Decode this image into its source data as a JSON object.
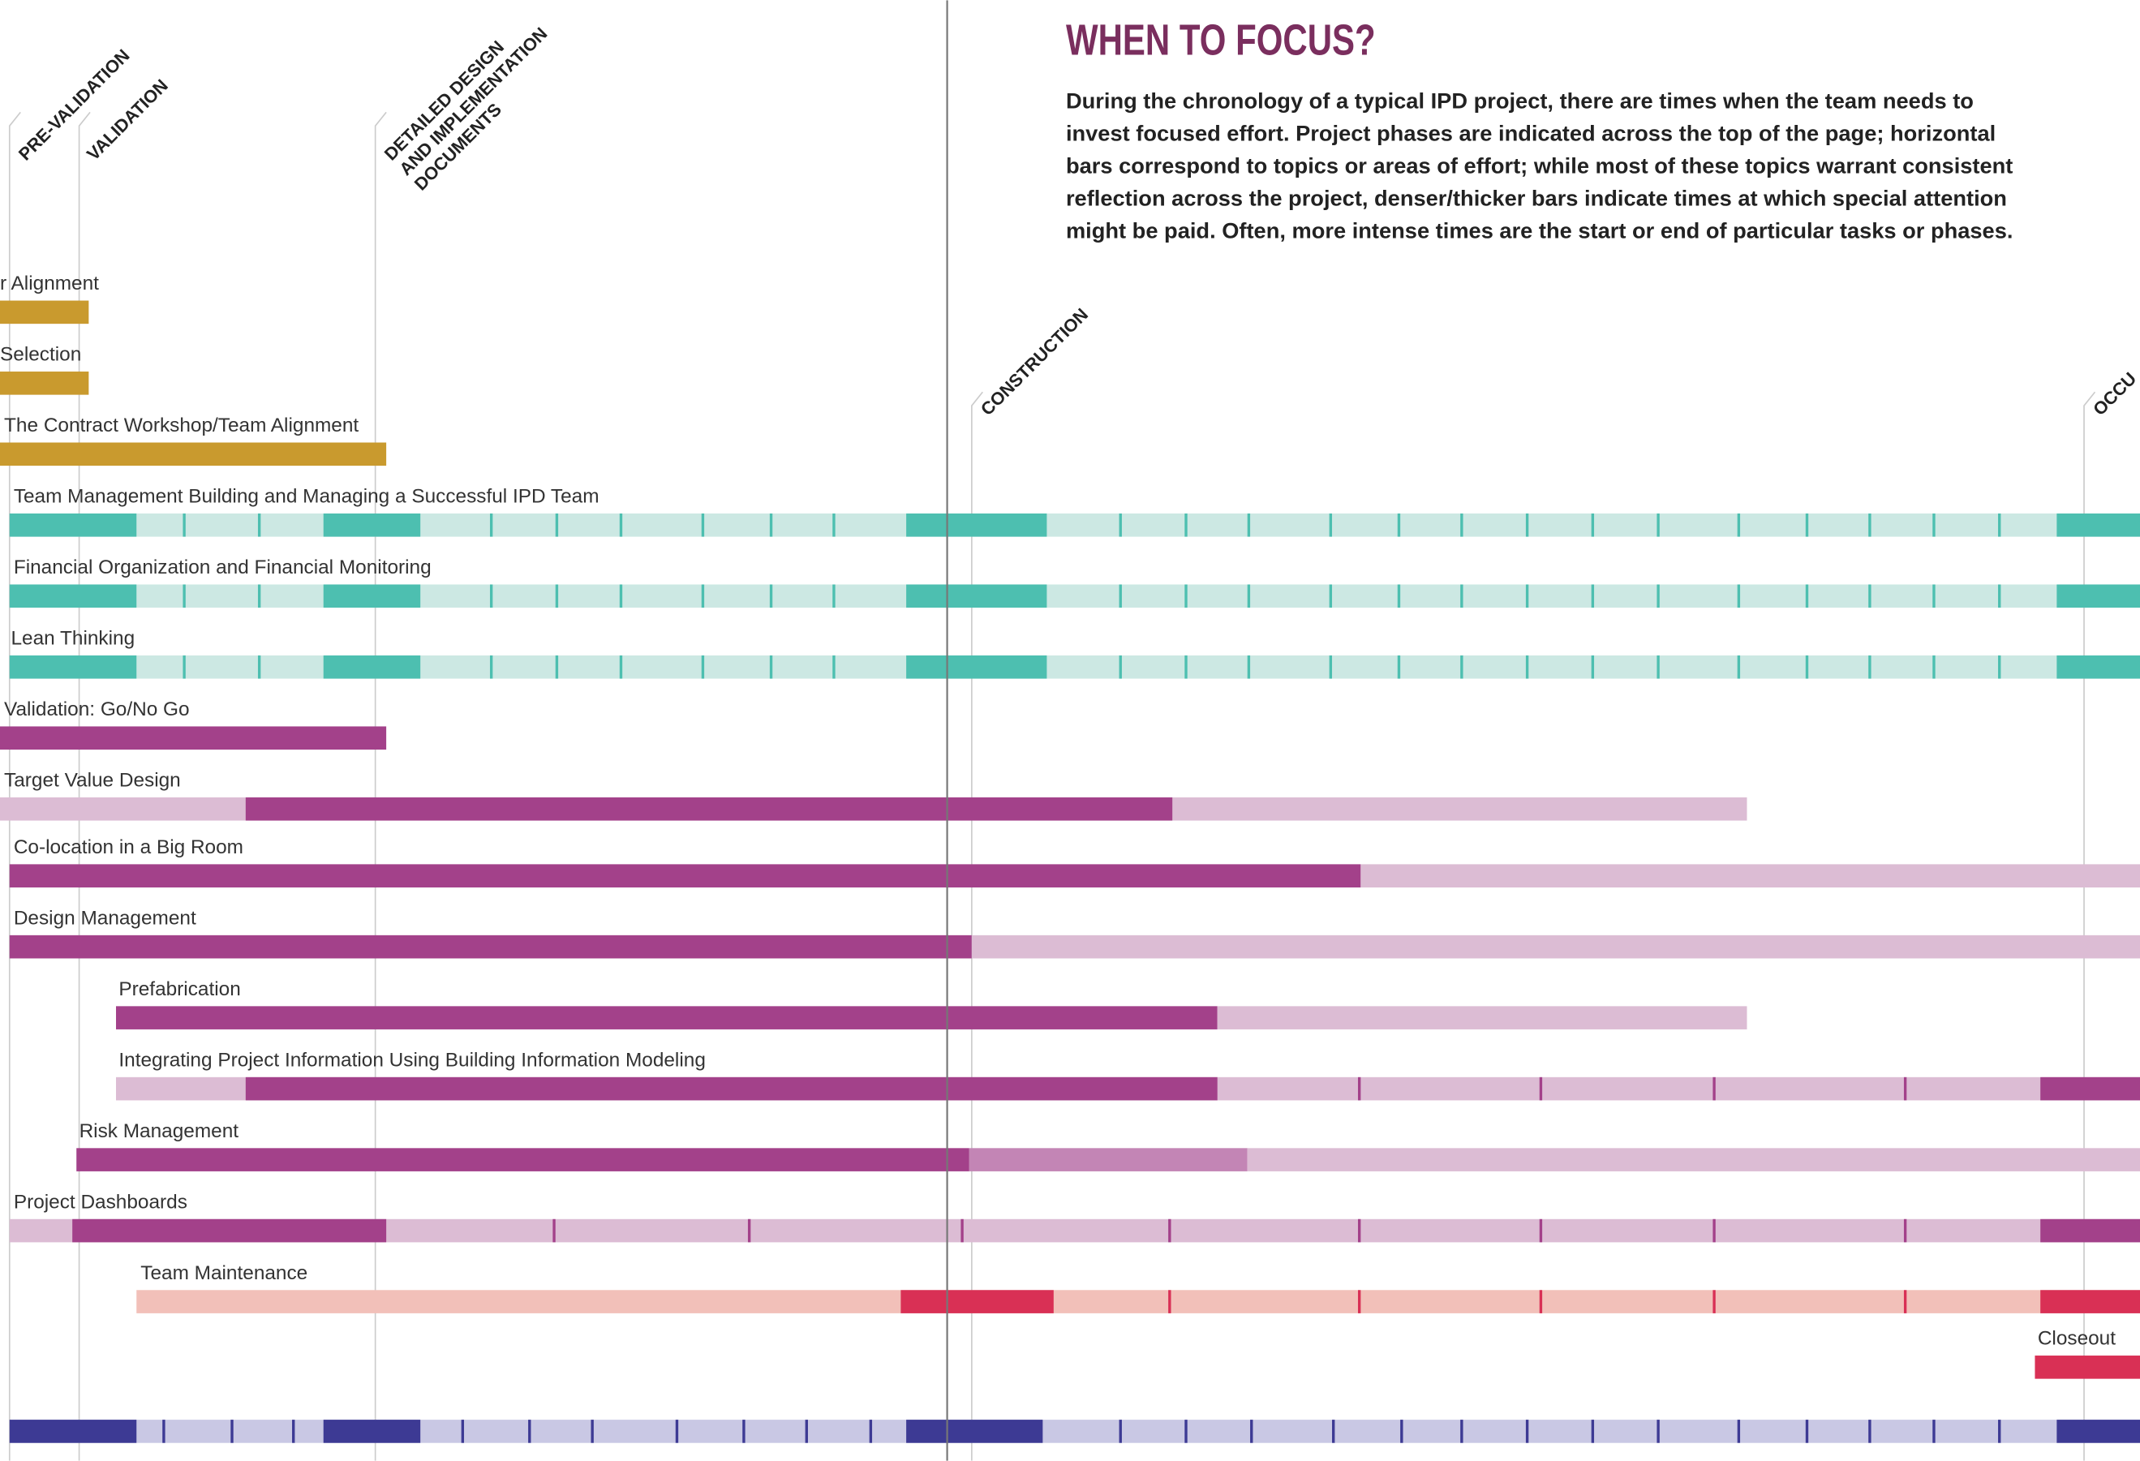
{
  "title": "WHEN TO FOCUS?",
  "description": [
    "During the chronology of a typical IPD project, there are times when the team needs to",
    "invest focused effort. Project phases are indicated across the top of the page; horizontal",
    "bars correspond to topics or areas of effort; while most of these topics warrant consistent",
    "reflection across the project,  denser/thicker bars indicate times at which special attention",
    "might be paid. Often, more intense times are the start or end of particular tasks or phases."
  ],
  "phases": [
    [
      "PRE-VALIDATION"
    ],
    [
      "VALIDATION"
    ],
    [
      "DETAILED DESIGN",
      "AND IMPLEMENTATION",
      "DOCUMENTS"
    ],
    [
      "CONSTRUCTION"
    ],
    [
      "OCCU"
    ]
  ],
  "rows": [
    "r Alignment",
    "Selection",
    "The Contract Workshop/Team Alignment",
    "Team Management Building and Managing a Successful IPD Team",
    "Financial Organization and Financial Monitoring",
    "Lean Thinking",
    "Validation: Go/No Go",
    "Target Value Design",
    "Co-location in a Big Room",
    "Design Management",
    "Prefabrication",
    "Integrating Project Information Using Building Information Modeling",
    "Risk Management",
    "Project Dashboards",
    "Team Maintenance",
    "Closeout"
  ]
}
